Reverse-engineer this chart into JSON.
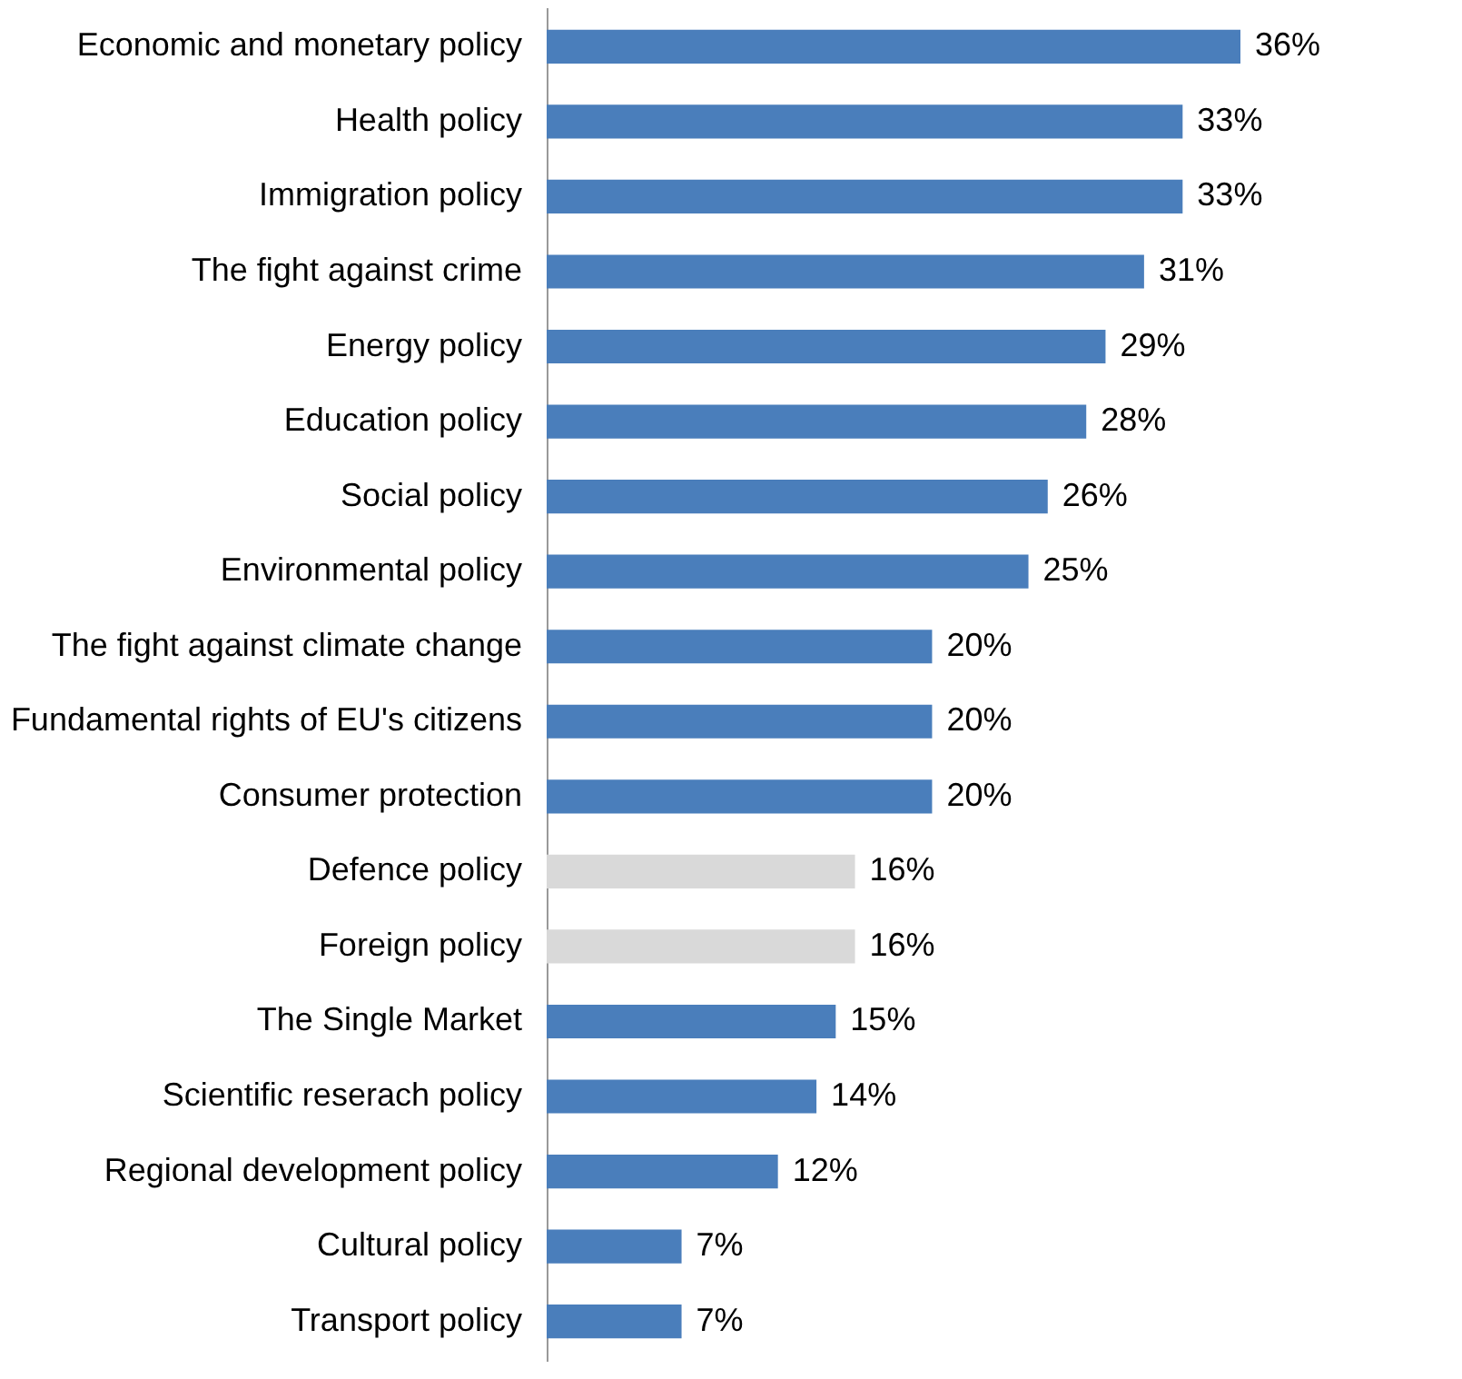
{
  "chart_data": {
    "type": "bar",
    "orientation": "horizontal",
    "categories": [
      "Economic and monetary policy",
      "Health policy",
      "Immigration policy",
      "The fight against crime",
      "Energy policy ",
      "Education policy",
      "Social policy",
      "Environmental policy",
      "The fight against climate change",
      "Fundamental rights of EU's citizens",
      "Consumer protection",
      "Defence policy ",
      "Foreign policy",
      "The Single Market",
      "Scientific reserach policy",
      "Regional development policy",
      "Cultural policy",
      "Transport policy"
    ],
    "values": [
      36,
      33,
      33,
      31,
      29,
      28,
      26,
      25,
      20,
      20,
      20,
      16,
      16,
      15,
      14,
      12,
      7,
      7
    ],
    "value_labels": [
      "36%",
      "33%",
      "33%",
      "31%",
      "29%",
      "28%",
      "26%",
      "25%",
      "20%",
      "20%",
      "20%",
      "16%",
      "16%",
      "15%",
      "14%",
      "12%",
      "7%",
      "7%"
    ],
    "colors": [
      "#4a7ebb",
      "#4a7ebb",
      "#4a7ebb",
      "#4a7ebb",
      "#4a7ebb",
      "#4a7ebb",
      "#4a7ebb",
      "#4a7ebb",
      "#4a7ebb",
      "#4a7ebb",
      "#4a7ebb",
      "#d9d9d9",
      "#d9d9d9",
      "#4a7ebb",
      "#4a7ebb",
      "#4a7ebb",
      "#4a7ebb",
      "#4a7ebb"
    ],
    "grid": false
  }
}
